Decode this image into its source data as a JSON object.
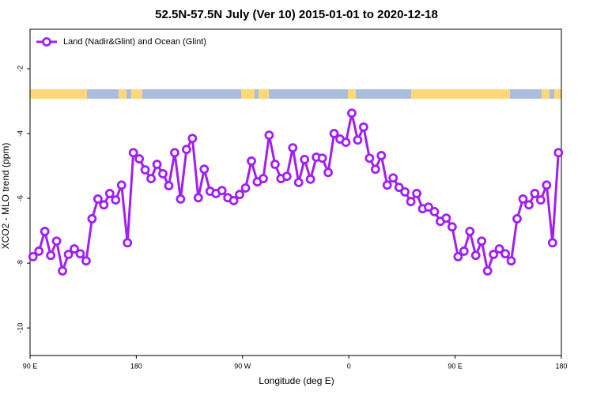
{
  "chart_data": {
    "type": "line",
    "title": "52.5N-57.5N July (Ver 10)   2015-01-01 to 2020-12-18",
    "x_label": "Longitude (deg E)",
    "y_label": "XCO2 - MLO trend (ppm)",
    "xlim": [
      90,
      540
    ],
    "ylim": [
      -10.85,
      -0.78
    ],
    "xticks": [
      {
        "value": 90,
        "label": "90 E"
      },
      180,
      {
        "value": 270,
        "label": "90 W"
      },
      {
        "value": 360,
        "label": "0"
      },
      {
        "value": 450,
        "label": "90 E"
      },
      {
        "value": 540,
        "label": "180"
      }
    ],
    "yticks": [
      -2,
      -4,
      -6,
      -8,
      -10
    ],
    "legend": "top-left",
    "x": [
      92.5,
      97.5,
      102.5,
      107.5,
      112.5,
      117.5,
      122.5,
      127.5,
      132.5,
      137.5,
      142.5,
      147.5,
      152.5,
      157.5,
      162.5,
      167.5,
      172.5,
      177.5,
      182.5,
      187.5,
      192.5,
      197.5,
      202.5,
      207.5,
      212.5,
      217.5,
      222.5,
      227.5,
      232.5,
      237.5,
      242.5,
      247.5,
      252.5,
      257.5,
      262.5,
      267.5,
      272.5,
      277.5,
      282.5,
      287.5,
      292.5,
      297.5,
      302.5,
      307.5,
      312.5,
      317.5,
      322.5,
      327.5,
      332.5,
      337.5,
      342.5,
      347.5,
      352.5,
      357.5,
      362.5,
      367.5,
      372.5,
      377.5,
      382.5,
      387.5,
      392.5,
      397.5,
      402.5,
      407.5,
      412.5,
      417.5,
      422.5,
      427.5,
      432.5,
      437.5,
      442.5,
      447.5,
      452.5,
      457.5,
      462.5,
      467.5,
      472.5,
      477.5,
      482.5,
      487.5,
      492.5,
      497.5,
      502.5,
      507.5,
      512.5,
      517.5,
      522.5,
      527.5,
      532.5,
      537.5
    ],
    "series": [
      {
        "name": "Land (Nadir&Glint) and Ocean (Glint)",
        "color": "#a020f0",
        "values": [
          -7.8,
          -7.63,
          -7.02,
          -7.76,
          -7.32,
          -8.24,
          -7.73,
          -7.56,
          -7.71,
          -7.93,
          -6.63,
          -6.02,
          -6.2,
          -5.85,
          -6.05,
          -5.59,
          -7.37,
          -4.59,
          -4.78,
          -5.12,
          -5.39,
          -4.95,
          -5.24,
          -5.61,
          -4.59,
          -6.02,
          -4.49,
          -4.15,
          -5.98,
          -5.1,
          -5.78,
          -5.85,
          -5.76,
          -5.98,
          -6.07,
          -5.88,
          -5.68,
          -4.85,
          -5.49,
          -5.39,
          -4.05,
          -4.95,
          -5.39,
          -5.32,
          -4.44,
          -5.51,
          -4.8,
          -5.41,
          -4.73,
          -4.76,
          -5.2,
          -4.0,
          -4.17,
          -4.27,
          -3.37,
          -4.2,
          -3.8,
          -4.76,
          -5.1,
          -4.68,
          -5.59,
          -5.37,
          -5.66,
          -5.8,
          -6.1,
          -5.85,
          -6.32,
          -6.27,
          -6.41,
          -6.71,
          -6.61,
          -6.88,
          -7.8,
          -7.63,
          -7.02,
          -7.76,
          -7.32,
          -8.24,
          -7.73,
          -7.56,
          -7.71,
          -7.93,
          -6.63,
          -6.02,
          -6.2,
          -5.85,
          -6.05,
          -5.59,
          -7.37,
          -4.59
        ]
      }
    ]
  }
}
